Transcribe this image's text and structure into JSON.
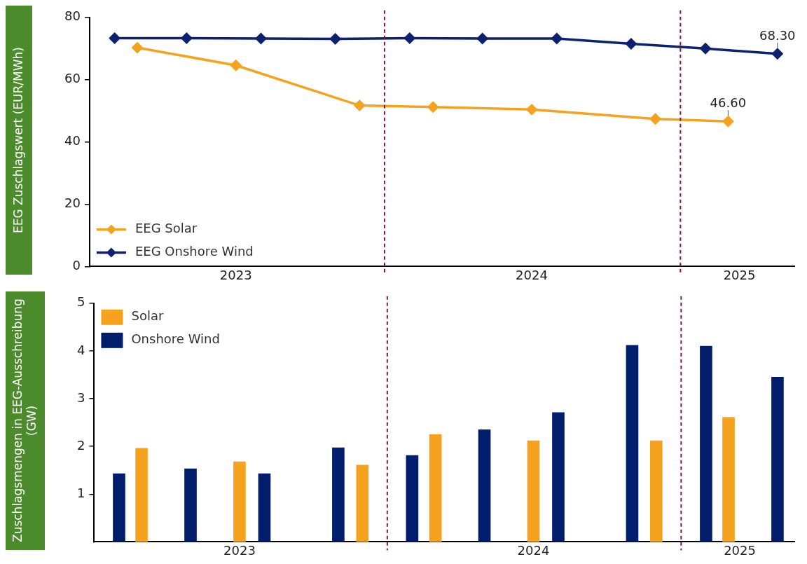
{
  "chart_data": [
    {
      "type": "line",
      "ylabel": "EEG Zuschlagswert (EUR/MWh)",
      "xlim": [
        "2023-01-01",
        "2025-05-22"
      ],
      "xticks": [
        {
          "value": "2023-07-01",
          "label": "2023"
        },
        {
          "value": "2024-07-01",
          "label": "2024"
        },
        {
          "value": "2025-03-15",
          "label": "2025"
        }
      ],
      "ylim": [
        0,
        80
      ],
      "yticks": [
        0,
        20,
        40,
        60,
        80
      ],
      "marker": "diamond",
      "legend": "bottom left",
      "series": [
        {
          "name": "EEG Solar",
          "color": "#f5a31f",
          "x": [
            "2023-03-01",
            "2023-07-01",
            "2023-12-01",
            "2024-03-01",
            "2024-07-01",
            "2024-12-01",
            "2025-03-01"
          ],
          "values": [
            70.3,
            64.6,
            51.7,
            51.2,
            50.4,
            47.4,
            46.6
          ]
        },
        {
          "name": "EEG Onshore Wind",
          "color": "#0c2270",
          "x": [
            "2023-02-01",
            "2023-05-01",
            "2023-08-01",
            "2023-11-01",
            "2024-02-01",
            "2024-05-01",
            "2024-08-01",
            "2024-11-01",
            "2025-02-01",
            "2025-05-01"
          ],
          "values": [
            73.3,
            73.3,
            73.2,
            73.1,
            73.3,
            73.2,
            73.2,
            71.5,
            70.0,
            68.3
          ]
        }
      ],
      "annotations": [
        {
          "text": "68.30",
          "x": "2025-05-01",
          "y": 68.3
        },
        {
          "text": "46.60",
          "x": "2025-03-01",
          "y": 46.6
        }
      ],
      "ref_lines": [
        {
          "axis": "x",
          "value": "2024-01-01",
          "color": "#7a1a4f",
          "line_style": "dashed"
        },
        {
          "axis": "x",
          "value": "2025-01-01",
          "color": "#7a1a4f",
          "line_style": "dashed"
        }
      ]
    },
    {
      "type": "bar",
      "ylabel": "Zuschlagsmengen in EEG-Ausschreibung (GW)",
      "xlim": [
        "2023-01-01",
        "2025-05-22"
      ],
      "xticks": [
        {
          "value": "2023-07-01",
          "label": "2023"
        },
        {
          "value": "2024-07-01",
          "label": "2024"
        },
        {
          "value": "2025-03-15",
          "label": "2025"
        }
      ],
      "ylim": [
        0,
        5
      ],
      "yticks": [
        1,
        2,
        3,
        4,
        5
      ],
      "legend": "top left",
      "series": [
        {
          "name": "Solar",
          "color": "#f5a31f",
          "x": [
            "2023-03-01",
            "2023-07-01",
            "2023-12-01",
            "2024-03-01",
            "2024-07-01",
            "2024-12-01",
            "2025-03-01"
          ],
          "values": [
            1.96,
            1.68,
            1.61,
            2.25,
            2.12,
            2.12,
            2.61
          ]
        },
        {
          "name": "Onshore Wind",
          "color": "#021d6b",
          "x": [
            "2023-02-01",
            "2023-05-01",
            "2023-08-01",
            "2023-11-01",
            "2024-02-01",
            "2024-05-01",
            "2024-08-01",
            "2024-11-01",
            "2025-02-01",
            "2025-05-01"
          ],
          "values": [
            1.43,
            1.53,
            1.43,
            1.97,
            1.81,
            2.35,
            2.71,
            4.12,
            4.1,
            3.45
          ]
        }
      ],
      "ref_lines": [
        {
          "axis": "x",
          "value": "2024-01-01",
          "color": "#7a1a4f",
          "line_style": "dashed"
        },
        {
          "axis": "x",
          "value": "2025-01-01",
          "color": "#7a1a4f",
          "line_style": "dashed"
        }
      ]
    }
  ]
}
